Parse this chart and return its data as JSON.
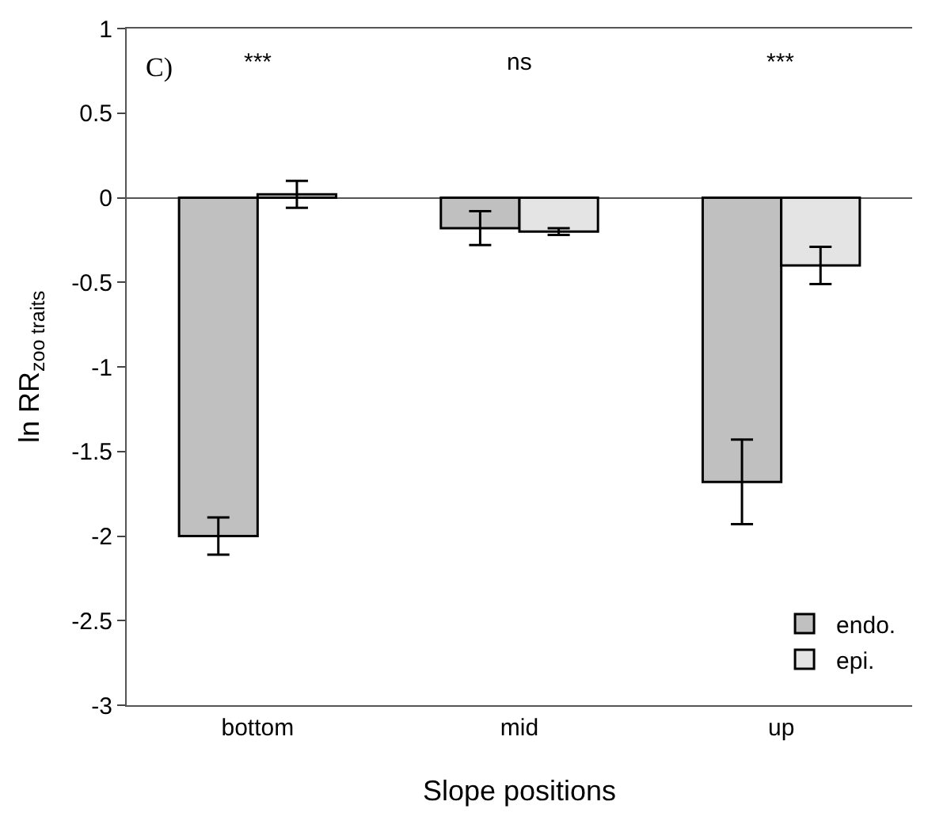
{
  "chart_data": {
    "type": "bar",
    "xlabel": "Slope positions",
    "ylabel": "ln RR$_{zoo traits}$",
    "categories": [
      "bottom",
      "mid",
      "up"
    ],
    "series": [
      {
        "name": "endo.",
        "color": "#c0c0c0",
        "values": [
          -2.0,
          -0.18,
          -1.68
        ],
        "errors": [
          0.11,
          0.1,
          0.25
        ]
      },
      {
        "name": "epi.",
        "color": "#e4e4e4",
        "values": [
          0.02,
          -0.2,
          -0.4
        ],
        "errors": [
          0.08,
          0.02,
          0.11
        ]
      }
    ],
    "ylim": [
      -3,
      1
    ],
    "yticks": [
      -3,
      -2.5,
      -2,
      -1.5,
      -1,
      -0.5,
      0,
      0.5,
      1
    ],
    "legend": "bottom right",
    "annotations": [
      "C)",
      "***",
      "ns",
      "***"
    ]
  }
}
